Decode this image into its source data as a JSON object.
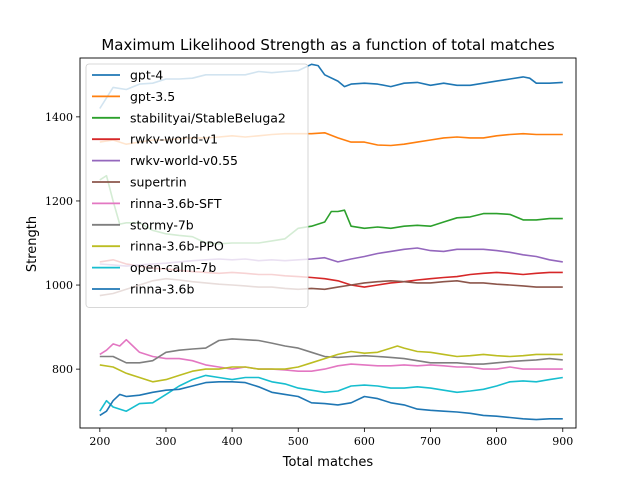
{
  "chart_data": {
    "type": "line",
    "title": "Maximum Likelihood Strength as a function of total matches",
    "xlabel": "Total matches",
    "ylabel": "Strength",
    "xlim": [
      170,
      920
    ],
    "ylim": [
      660,
      1540
    ],
    "xticks": [
      200,
      300,
      400,
      500,
      600,
      700,
      800,
      900
    ],
    "yticks": [
      800,
      1000,
      1200,
      1400
    ],
    "legend_position": "upper-left",
    "grid": false,
    "series": [
      {
        "name": "gpt-4",
        "color": "#1f77b4",
        "x": [
          200,
          220,
          240,
          260,
          280,
          300,
          320,
          340,
          360,
          380,
          400,
          420,
          440,
          460,
          480,
          500,
          520,
          530,
          540,
          560,
          570,
          580,
          600,
          620,
          640,
          660,
          680,
          700,
          720,
          740,
          760,
          780,
          800,
          820,
          840,
          850,
          860,
          880,
          900
        ],
        "y": [
          1420,
          1470,
          1465,
          1478,
          1480,
          1490,
          1490,
          1492,
          1500,
          1500,
          1500,
          1500,
          1508,
          1505,
          1508,
          1510,
          1525,
          1522,
          1500,
          1485,
          1472,
          1478,
          1480,
          1478,
          1472,
          1480,
          1482,
          1475,
          1480,
          1475,
          1475,
          1480,
          1485,
          1490,
          1495,
          1492,
          1480,
          1480,
          1482
        ]
      },
      {
        "name": "gpt-3.5",
        "color": "#ff7f0e",
        "x": [
          200,
          220,
          240,
          260,
          280,
          300,
          320,
          340,
          360,
          380,
          400,
          420,
          440,
          460,
          480,
          500,
          520,
          540,
          560,
          580,
          600,
          620,
          640,
          660,
          680,
          700,
          720,
          740,
          760,
          780,
          800,
          820,
          840,
          860,
          880,
          900
        ],
        "y": [
          1340,
          1345,
          1335,
          1340,
          1345,
          1345,
          1348,
          1350,
          1350,
          1352,
          1355,
          1352,
          1355,
          1358,
          1360,
          1360,
          1360,
          1362,
          1350,
          1340,
          1340,
          1333,
          1332,
          1335,
          1340,
          1345,
          1350,
          1352,
          1350,
          1350,
          1355,
          1358,
          1360,
          1358,
          1358,
          1358
        ]
      },
      {
        "name": "stabilityai/StableBeluga2",
        "color": "#2ca02c",
        "x": [
          200,
          210,
          220,
          230,
          240,
          260,
          280,
          300,
          320,
          340,
          360,
          380,
          400,
          420,
          440,
          460,
          480,
          500,
          520,
          540,
          550,
          560,
          570,
          580,
          600,
          620,
          640,
          660,
          680,
          700,
          720,
          740,
          760,
          780,
          800,
          820,
          840,
          860,
          880,
          900
        ],
        "y": [
          1250,
          1260,
          1200,
          1145,
          1148,
          1148,
          1130,
          1122,
          1118,
          1115,
          1100,
          1098,
          1100,
          1100,
          1100,
          1105,
          1110,
          1135,
          1140,
          1150,
          1175,
          1175,
          1178,
          1140,
          1135,
          1138,
          1135,
          1140,
          1142,
          1140,
          1150,
          1160,
          1162,
          1170,
          1170,
          1168,
          1155,
          1155,
          1158,
          1158
        ]
      },
      {
        "name": "rwkv-world-v1",
        "color": "#d62728",
        "x": [
          200,
          220,
          240,
          260,
          280,
          300,
          320,
          340,
          360,
          380,
          400,
          420,
          440,
          460,
          480,
          500,
          520,
          540,
          560,
          580,
          600,
          620,
          640,
          660,
          680,
          700,
          720,
          740,
          760,
          780,
          800,
          820,
          840,
          860,
          880,
          900
        ],
        "y": [
          1055,
          1060,
          1050,
          1045,
          1040,
          1038,
          1035,
          1032,
          1030,
          1028,
          1030,
          1028,
          1025,
          1025,
          1022,
          1020,
          1018,
          1015,
          1010,
          1000,
          995,
          1000,
          1005,
          1008,
          1012,
          1015,
          1018,
          1020,
          1025,
          1028,
          1030,
          1028,
          1025,
          1028,
          1030,
          1030
        ]
      },
      {
        "name": "rwkv-world-v0.55",
        "color": "#9467bd",
        "x": [
          200,
          220,
          240,
          260,
          280,
          300,
          320,
          340,
          360,
          380,
          400,
          420,
          440,
          460,
          480,
          500,
          520,
          540,
          560,
          580,
          600,
          620,
          640,
          660,
          680,
          700,
          720,
          740,
          760,
          780,
          800,
          820,
          840,
          860,
          880,
          900
        ],
        "y": [
          1050,
          1048,
          1045,
          1048,
          1050,
          1052,
          1055,
          1058,
          1060,
          1062,
          1060,
          1062,
          1058,
          1060,
          1058,
          1060,
          1062,
          1065,
          1055,
          1062,
          1068,
          1075,
          1080,
          1085,
          1088,
          1082,
          1080,
          1085,
          1085,
          1085,
          1082,
          1078,
          1072,
          1068,
          1060,
          1055
        ]
      },
      {
        "name": "supertrin",
        "color": "#8c564b",
        "x": [
          200,
          220,
          240,
          260,
          280,
          300,
          320,
          340,
          360,
          380,
          400,
          420,
          440,
          460,
          480,
          500,
          520,
          540,
          560,
          580,
          600,
          620,
          640,
          660,
          680,
          700,
          720,
          740,
          760,
          780,
          800,
          820,
          840,
          860,
          880,
          900
        ],
        "y": [
          975,
          980,
          990,
          1000,
          1010,
          1015,
          1012,
          1008,
          1005,
          1002,
          1000,
          998,
          995,
          995,
          992,
          990,
          992,
          990,
          995,
          1000,
          1005,
          1008,
          1010,
          1008,
          1005,
          1005,
          1008,
          1010,
          1005,
          1005,
          1002,
          1000,
          998,
          995,
          995,
          995
        ]
      },
      {
        "name": "rinna-3.6b-SFT",
        "color": "#e377c2",
        "x": [
          200,
          210,
          220,
          230,
          240,
          250,
          260,
          280,
          300,
          320,
          340,
          360,
          380,
          400,
          420,
          440,
          460,
          480,
          500,
          520,
          540,
          560,
          580,
          600,
          620,
          640,
          660,
          680,
          700,
          720,
          740,
          760,
          780,
          800,
          820,
          840,
          860,
          880,
          900
        ],
        "y": [
          835,
          845,
          860,
          855,
          870,
          855,
          840,
          830,
          825,
          825,
          820,
          810,
          805,
          800,
          805,
          800,
          800,
          798,
          795,
          795,
          800,
          808,
          812,
          810,
          808,
          808,
          810,
          808,
          810,
          808,
          805,
          805,
          800,
          800,
          805,
          800,
          800,
          800,
          800
        ]
      },
      {
        "name": "stormy-7b",
        "color": "#7f7f7f",
        "x": [
          200,
          220,
          240,
          260,
          280,
          300,
          320,
          340,
          360,
          380,
          400,
          420,
          440,
          460,
          480,
          500,
          520,
          540,
          560,
          580,
          600,
          620,
          640,
          660,
          680,
          700,
          720,
          740,
          760,
          780,
          800,
          820,
          840,
          860,
          880,
          900
        ],
        "y": [
          830,
          830,
          815,
          815,
          820,
          840,
          845,
          848,
          850,
          868,
          872,
          870,
          868,
          862,
          855,
          850,
          840,
          830,
          828,
          830,
          832,
          830,
          828,
          825,
          820,
          815,
          815,
          815,
          812,
          812,
          815,
          818,
          820,
          822,
          825,
          822
        ]
      },
      {
        "name": "rinna-3.6b-PPO",
        "color": "#bcbd22",
        "x": [
          200,
          220,
          240,
          260,
          280,
          300,
          320,
          340,
          360,
          380,
          400,
          420,
          440,
          460,
          480,
          500,
          520,
          540,
          560,
          580,
          600,
          620,
          640,
          650,
          660,
          680,
          700,
          720,
          740,
          760,
          780,
          800,
          820,
          840,
          860,
          880,
          900
        ],
        "y": [
          810,
          805,
          790,
          780,
          770,
          775,
          785,
          795,
          800,
          800,
          805,
          805,
          800,
          800,
          800,
          805,
          815,
          825,
          835,
          842,
          838,
          840,
          850,
          855,
          850,
          842,
          840,
          835,
          830,
          832,
          835,
          832,
          830,
          832,
          835,
          835,
          835
        ]
      },
      {
        "name": "open-calm-7b",
        "color": "#17becf",
        "x": [
          200,
          210,
          220,
          240,
          260,
          280,
          300,
          320,
          340,
          360,
          380,
          400,
          420,
          440,
          460,
          480,
          500,
          520,
          540,
          560,
          580,
          600,
          620,
          640,
          660,
          680,
          700,
          720,
          740,
          760,
          780,
          800,
          820,
          840,
          860,
          880,
          900
        ],
        "y": [
          700,
          725,
          710,
          700,
          718,
          720,
          740,
          760,
          775,
          785,
          780,
          775,
          780,
          780,
          770,
          765,
          755,
          750,
          745,
          748,
          760,
          762,
          760,
          755,
          755,
          758,
          755,
          750,
          745,
          748,
          752,
          760,
          770,
          772,
          770,
          775,
          780
        ]
      },
      {
        "name": "rinna-3.6b",
        "color": "#1f77b4",
        "x": [
          200,
          210,
          220,
          230,
          240,
          260,
          280,
          300,
          320,
          340,
          360,
          380,
          400,
          420,
          440,
          460,
          480,
          500,
          520,
          540,
          560,
          580,
          600,
          620,
          640,
          660,
          680,
          700,
          720,
          740,
          760,
          780,
          800,
          820,
          840,
          860,
          880,
          900
        ],
        "y": [
          690,
          700,
          725,
          740,
          735,
          738,
          745,
          750,
          752,
          760,
          768,
          770,
          770,
          768,
          758,
          745,
          740,
          735,
          720,
          718,
          715,
          720,
          735,
          730,
          720,
          715,
          705,
          702,
          700,
          698,
          695,
          690,
          688,
          685,
          682,
          680,
          682,
          682
        ]
      }
    ]
  }
}
